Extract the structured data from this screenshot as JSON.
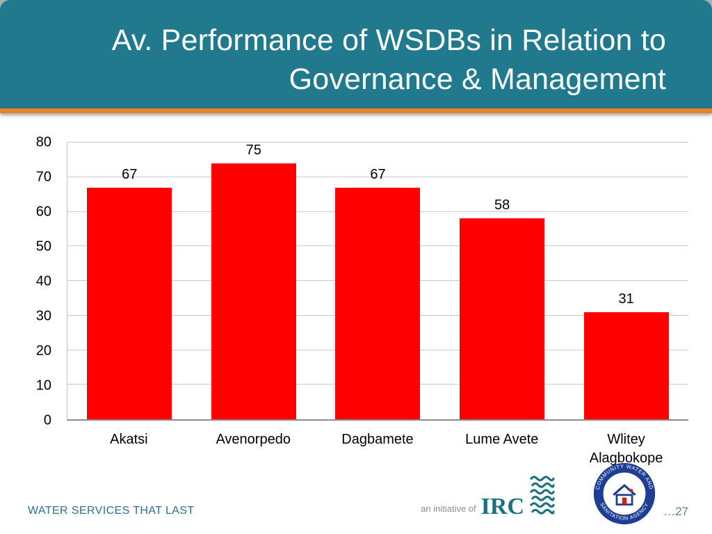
{
  "slide": {
    "title_line1": "Av. Performance of WSDBs in Relation to",
    "title_line2": "Governance & Management",
    "footer_text": "WATER SERVICES THAT LAST",
    "page_number": "…27"
  },
  "logos": {
    "irc_prefix": "an initiative of",
    "irc_name": "IRC",
    "cwsa_arc_top": "COMMUNITY WATER AND",
    "cwsa_arc_bottom": "SANITATION AGENCY"
  },
  "colors": {
    "header_bg": "#20798C",
    "accent_line": "#E6842E",
    "bar": "#FF0000",
    "footer_text": "#2E6E91",
    "irc_teal": "#17717F",
    "cwsa_blue": "#1D3E94"
  },
  "chart_data": {
    "type": "bar",
    "title": "Av. Performance of WSDBs in Relation to Governance & Management",
    "categories": [
      "Akatsi",
      "Avenorpedo",
      "Dagbamete",
      "Lume Avete",
      "Wlitey Alagbokope"
    ],
    "values": [
      67,
      75,
      67,
      58,
      31
    ],
    "xlabel": "",
    "ylabel": "",
    "ylim": [
      0,
      80
    ],
    "ytick_interval": 10,
    "grid": true,
    "legend": false,
    "bar_color": "#FF0000"
  }
}
